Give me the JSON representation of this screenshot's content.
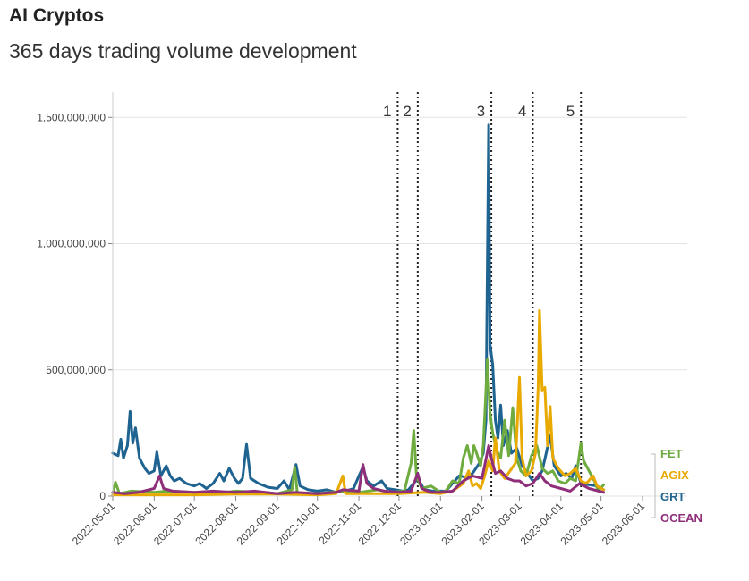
{
  "chart_data": {
    "type": "line",
    "title": "AI Cryptos",
    "subtitle": "365 days trading volume development",
    "xlabel": "",
    "ylabel": "",
    "xlim": [
      "2022-05-01",
      "2023-06-01"
    ],
    "ylim": [
      0,
      1600000000
    ],
    "y_ticks": [
      0,
      500000000,
      1000000000,
      1500000000
    ],
    "y_tick_labels": [
      "0",
      "500,000,000",
      "1,000,000,000",
      "1,500,000,000"
    ],
    "x_ticks": [
      "2022-05-01",
      "2022-06-01",
      "2022-07-01",
      "2022-08-01",
      "2022-09-01",
      "2022-10-01",
      "2022-11-01",
      "2022-12-01",
      "2023-01-01",
      "2023-02-01",
      "2023-03-01",
      "2023-04-01",
      "2023-05-01",
      "2023-06-01"
    ],
    "grid": true,
    "legend_placement": "right",
    "events": [
      {
        "label": "1",
        "date": "2022-11-30"
      },
      {
        "label": "2",
        "date": "2022-12-15"
      },
      {
        "label": "3",
        "date": "2023-02-08"
      },
      {
        "label": "4",
        "date": "2023-03-11"
      },
      {
        "label": "5",
        "date": "2023-04-16"
      }
    ],
    "series": [
      {
        "name": "GRT",
        "color": "#1f6391",
        "points": [
          [
            "2022-05-01",
            170000000
          ],
          [
            "2022-05-05",
            160000000
          ],
          [
            "2022-05-07",
            225000000
          ],
          [
            "2022-05-09",
            150000000
          ],
          [
            "2022-05-12",
            200000000
          ],
          [
            "2022-05-14",
            335000000
          ],
          [
            "2022-05-16",
            210000000
          ],
          [
            "2022-05-18",
            270000000
          ],
          [
            "2022-05-21",
            150000000
          ],
          [
            "2022-05-25",
            110000000
          ],
          [
            "2022-05-28",
            90000000
          ],
          [
            "2022-06-01",
            100000000
          ],
          [
            "2022-06-03",
            175000000
          ],
          [
            "2022-06-06",
            80000000
          ],
          [
            "2022-06-10",
            120000000
          ],
          [
            "2022-06-13",
            80000000
          ],
          [
            "2022-06-16",
            60000000
          ],
          [
            "2022-06-20",
            70000000
          ],
          [
            "2022-06-25",
            50000000
          ],
          [
            "2022-07-01",
            40000000
          ],
          [
            "2022-07-05",
            50000000
          ],
          [
            "2022-07-10",
            30000000
          ],
          [
            "2022-07-15",
            50000000
          ],
          [
            "2022-07-20",
            90000000
          ],
          [
            "2022-07-23",
            60000000
          ],
          [
            "2022-07-27",
            110000000
          ],
          [
            "2022-07-31",
            70000000
          ],
          [
            "2022-08-03",
            50000000
          ],
          [
            "2022-08-06",
            70000000
          ],
          [
            "2022-08-09",
            205000000
          ],
          [
            "2022-08-12",
            70000000
          ],
          [
            "2022-08-18",
            50000000
          ],
          [
            "2022-08-25",
            35000000
          ],
          [
            "2022-09-01",
            30000000
          ],
          [
            "2022-09-06",
            60000000
          ],
          [
            "2022-09-10",
            25000000
          ],
          [
            "2022-09-15",
            125000000
          ],
          [
            "2022-09-18",
            40000000
          ],
          [
            "2022-09-24",
            25000000
          ],
          [
            "2022-10-01",
            20000000
          ],
          [
            "2022-10-08",
            25000000
          ],
          [
            "2022-10-15",
            15000000
          ],
          [
            "2022-10-22",
            20000000
          ],
          [
            "2022-10-28",
            30000000
          ],
          [
            "2022-11-01",
            80000000
          ],
          [
            "2022-11-04",
            115000000
          ],
          [
            "2022-11-07",
            60000000
          ],
          [
            "2022-11-12",
            40000000
          ],
          [
            "2022-11-18",
            60000000
          ],
          [
            "2022-11-22",
            30000000
          ],
          [
            "2022-11-28",
            25000000
          ],
          [
            "2022-12-04",
            20000000
          ],
          [
            "2022-12-08",
            25000000
          ],
          [
            "2022-12-15",
            70000000
          ],
          [
            "2022-12-20",
            25000000
          ],
          [
            "2022-12-26",
            20000000
          ],
          [
            "2023-01-01",
            20000000
          ],
          [
            "2023-01-05",
            20000000
          ],
          [
            "2023-01-10",
            50000000
          ],
          [
            "2023-01-15",
            80000000
          ],
          [
            "2023-01-20",
            75000000
          ],
          [
            "2023-01-25",
            90000000
          ],
          [
            "2023-01-30",
            130000000
          ],
          [
            "2023-02-02",
            170000000
          ],
          [
            "2023-02-04",
            300000000
          ],
          [
            "2023-02-05",
            900000000
          ],
          [
            "2023-02-06",
            1470000000
          ],
          [
            "2023-02-07",
            600000000
          ],
          [
            "2023-02-09",
            520000000
          ],
          [
            "2023-02-11",
            300000000
          ],
          [
            "2023-02-13",
            230000000
          ],
          [
            "2023-02-15",
            360000000
          ],
          [
            "2023-02-17",
            200000000
          ],
          [
            "2023-02-20",
            260000000
          ],
          [
            "2023-02-23",
            170000000
          ],
          [
            "2023-02-27",
            190000000
          ],
          [
            "2023-03-03",
            120000000
          ],
          [
            "2023-03-07",
            90000000
          ],
          [
            "2023-03-11",
            60000000
          ],
          [
            "2023-03-15",
            70000000
          ],
          [
            "2023-03-18",
            100000000
          ],
          [
            "2023-03-21",
            170000000
          ],
          [
            "2023-03-24",
            240000000
          ],
          [
            "2023-03-27",
            120000000
          ],
          [
            "2023-04-01",
            80000000
          ],
          [
            "2023-04-05",
            90000000
          ],
          [
            "2023-04-09",
            70000000
          ],
          [
            "2023-04-12",
            120000000
          ],
          [
            "2023-04-16",
            50000000
          ],
          [
            "2023-04-22",
            45000000
          ],
          [
            "2023-04-28",
            40000000
          ],
          [
            "2023-05-03",
            25000000
          ]
        ]
      },
      {
        "name": "FET",
        "color": "#6fac3f",
        "points": [
          [
            "2022-05-01",
            5000000
          ],
          [
            "2022-05-03",
            55000000
          ],
          [
            "2022-05-06",
            10000000
          ],
          [
            "2022-05-15",
            20000000
          ],
          [
            "2022-06-01",
            15000000
          ],
          [
            "2022-06-10",
            20000000
          ],
          [
            "2022-07-01",
            15000000
          ],
          [
            "2022-07-15",
            10000000
          ],
          [
            "2022-08-01",
            20000000
          ],
          [
            "2022-08-20",
            15000000
          ],
          [
            "2022-09-01",
            10000000
          ],
          [
            "2022-09-12",
            25000000
          ],
          [
            "2022-09-14",
            115000000
          ],
          [
            "2022-09-16",
            10000000
          ],
          [
            "2022-10-01",
            10000000
          ],
          [
            "2022-10-20",
            20000000
          ],
          [
            "2022-11-01",
            15000000
          ],
          [
            "2022-11-15",
            25000000
          ],
          [
            "2022-11-25",
            15000000
          ],
          [
            "2022-12-05",
            20000000
          ],
          [
            "2022-12-10",
            130000000
          ],
          [
            "2022-12-12",
            260000000
          ],
          [
            "2022-12-14",
            80000000
          ],
          [
            "2022-12-18",
            30000000
          ],
          [
            "2022-12-25",
            40000000
          ],
          [
            "2023-01-01",
            15000000
          ],
          [
            "2023-01-05",
            20000000
          ],
          [
            "2023-01-10",
            60000000
          ],
          [
            "2023-01-15",
            50000000
          ],
          [
            "2023-01-18",
            150000000
          ],
          [
            "2023-01-21",
            200000000
          ],
          [
            "2023-01-24",
            130000000
          ],
          [
            "2023-01-26",
            200000000
          ],
          [
            "2023-01-28",
            170000000
          ],
          [
            "2023-01-31",
            120000000
          ],
          [
            "2023-02-02",
            200000000
          ],
          [
            "2023-02-04",
            420000000
          ],
          [
            "2023-02-05",
            540000000
          ],
          [
            "2023-02-07",
            330000000
          ],
          [
            "2023-02-09",
            250000000
          ],
          [
            "2023-02-12",
            180000000
          ],
          [
            "2023-02-15",
            150000000
          ],
          [
            "2023-02-18",
            300000000
          ],
          [
            "2023-02-21",
            160000000
          ],
          [
            "2023-02-24",
            350000000
          ],
          [
            "2023-02-27",
            150000000
          ],
          [
            "2023-03-02",
            100000000
          ],
          [
            "2023-03-06",
            80000000
          ],
          [
            "2023-03-10",
            160000000
          ],
          [
            "2023-03-14",
            200000000
          ],
          [
            "2023-03-18",
            110000000
          ],
          [
            "2023-03-22",
            90000000
          ],
          [
            "2023-03-26",
            100000000
          ],
          [
            "2023-03-30",
            60000000
          ],
          [
            "2023-04-04",
            50000000
          ],
          [
            "2023-04-08",
            70000000
          ],
          [
            "2023-04-12",
            60000000
          ],
          [
            "2023-04-16",
            210000000
          ],
          [
            "2023-04-18",
            140000000
          ],
          [
            "2023-04-22",
            100000000
          ],
          [
            "2023-04-26",
            60000000
          ],
          [
            "2023-04-29",
            20000000
          ],
          [
            "2023-05-03",
            45000000
          ]
        ]
      },
      {
        "name": "AGIX",
        "color": "#e8a900",
        "points": [
          [
            "2022-05-01",
            5000000
          ],
          [
            "2022-06-01",
            5000000
          ],
          [
            "2022-07-01",
            5000000
          ],
          [
            "2022-08-01",
            8000000
          ],
          [
            "2022-09-01",
            8000000
          ],
          [
            "2022-10-01",
            5000000
          ],
          [
            "2022-10-15",
            10000000
          ],
          [
            "2022-10-20",
            80000000
          ],
          [
            "2022-10-22",
            10000000
          ],
          [
            "2022-11-01",
            10000000
          ],
          [
            "2022-12-01",
            10000000
          ],
          [
            "2022-12-20",
            15000000
          ],
          [
            "2023-01-01",
            10000000
          ],
          [
            "2023-01-10",
            20000000
          ],
          [
            "2023-01-18",
            50000000
          ],
          [
            "2023-01-22",
            100000000
          ],
          [
            "2023-01-25",
            40000000
          ],
          [
            "2023-01-28",
            50000000
          ],
          [
            "2023-01-31",
            30000000
          ],
          [
            "2023-02-03",
            80000000
          ],
          [
            "2023-02-06",
            140000000
          ],
          [
            "2023-02-09",
            100000000
          ],
          [
            "2023-02-11",
            230000000
          ],
          [
            "2023-02-14",
            100000000
          ],
          [
            "2023-02-18",
            70000000
          ],
          [
            "2023-02-22",
            100000000
          ],
          [
            "2023-02-26",
            130000000
          ],
          [
            "2023-03-01",
            470000000
          ],
          [
            "2023-03-03",
            150000000
          ],
          [
            "2023-03-06",
            80000000
          ],
          [
            "2023-03-10",
            100000000
          ],
          [
            "2023-03-13",
            170000000
          ],
          [
            "2023-03-15",
            430000000
          ],
          [
            "2023-03-16",
            735000000
          ],
          [
            "2023-03-18",
            420000000
          ],
          [
            "2023-03-20",
            430000000
          ],
          [
            "2023-03-22",
            200000000
          ],
          [
            "2023-03-24",
            355000000
          ],
          [
            "2023-03-26",
            150000000
          ],
          [
            "2023-03-30",
            110000000
          ],
          [
            "2023-04-04",
            80000000
          ],
          [
            "2023-04-08",
            90000000
          ],
          [
            "2023-04-12",
            110000000
          ],
          [
            "2023-04-16",
            60000000
          ],
          [
            "2023-04-20",
            50000000
          ],
          [
            "2023-04-25",
            80000000
          ],
          [
            "2023-04-28",
            40000000
          ],
          [
            "2023-05-03",
            25000000
          ]
        ]
      },
      {
        "name": "OCEAN",
        "color": "#8f2f7a",
        "points": [
          [
            "2022-05-01",
            15000000
          ],
          [
            "2022-05-10",
            10000000
          ],
          [
            "2022-05-20",
            15000000
          ],
          [
            "2022-06-01",
            30000000
          ],
          [
            "2022-06-05",
            80000000
          ],
          [
            "2022-06-08",
            30000000
          ],
          [
            "2022-06-15",
            20000000
          ],
          [
            "2022-07-01",
            15000000
          ],
          [
            "2022-07-15",
            20000000
          ],
          [
            "2022-08-01",
            15000000
          ],
          [
            "2022-08-15",
            20000000
          ],
          [
            "2022-09-01",
            10000000
          ],
          [
            "2022-09-15",
            15000000
          ],
          [
            "2022-10-01",
            10000000
          ],
          [
            "2022-10-15",
            15000000
          ],
          [
            "2022-10-20",
            25000000
          ],
          [
            "2022-11-01",
            20000000
          ],
          [
            "2022-11-04",
            125000000
          ],
          [
            "2022-11-07",
            50000000
          ],
          [
            "2022-11-12",
            30000000
          ],
          [
            "2022-11-20",
            20000000
          ],
          [
            "2022-12-01",
            15000000
          ],
          [
            "2022-12-10",
            20000000
          ],
          [
            "2022-12-15",
            90000000
          ],
          [
            "2022-12-18",
            30000000
          ],
          [
            "2022-12-25",
            15000000
          ],
          [
            "2023-01-01",
            15000000
          ],
          [
            "2023-01-10",
            20000000
          ],
          [
            "2023-01-18",
            60000000
          ],
          [
            "2023-01-25",
            80000000
          ],
          [
            "2023-02-01",
            70000000
          ],
          [
            "2023-02-03",
            120000000
          ],
          [
            "2023-02-06",
            200000000
          ],
          [
            "2023-02-08",
            150000000
          ],
          [
            "2023-02-11",
            90000000
          ],
          [
            "2023-02-15",
            100000000
          ],
          [
            "2023-02-20",
            70000000
          ],
          [
            "2023-02-25",
            60000000
          ],
          [
            "2023-03-01",
            60000000
          ],
          [
            "2023-03-06",
            40000000
          ],
          [
            "2023-03-11",
            50000000
          ],
          [
            "2023-03-16",
            90000000
          ],
          [
            "2023-03-20",
            60000000
          ],
          [
            "2023-03-25",
            40000000
          ],
          [
            "2023-04-01",
            30000000
          ],
          [
            "2023-04-08",
            20000000
          ],
          [
            "2023-04-15",
            50000000
          ],
          [
            "2023-04-22",
            30000000
          ],
          [
            "2023-05-03",
            15000000
          ]
        ]
      }
    ]
  }
}
